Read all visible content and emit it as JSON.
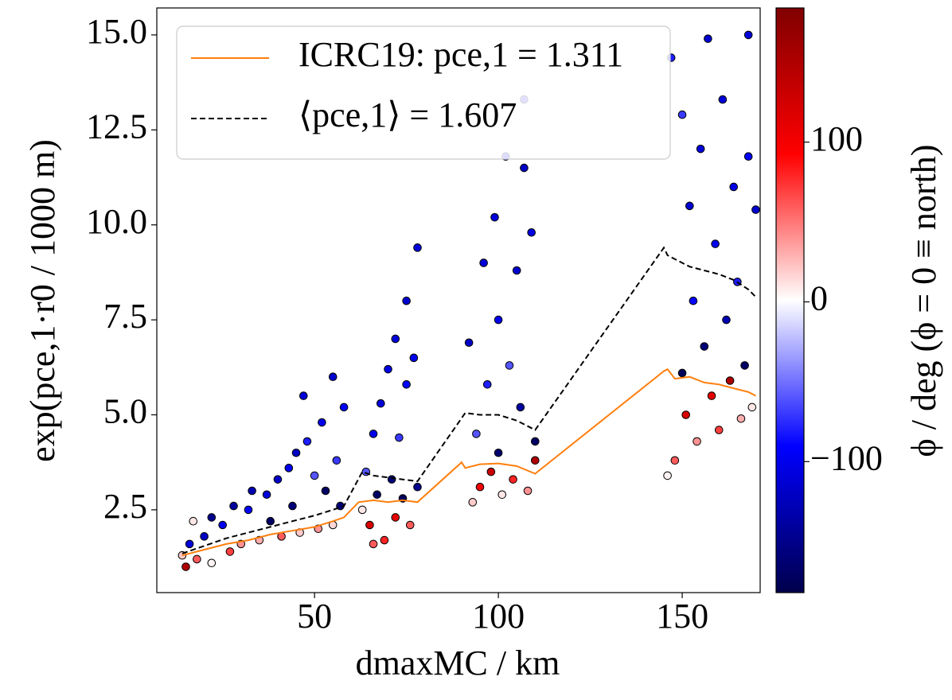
{
  "chart_data": {
    "type": "scatter",
    "xlabel": "dmaxMC / km",
    "ylabel": "exp(pce,1·r0 / 1000 m)",
    "xlim": [
      7.1,
      171.2
    ],
    "ylim": [
      0.32,
      15.71
    ],
    "xticks": [
      50,
      100,
      150
    ],
    "yticks": [
      2.5,
      {
        "value": 5,
        "label": "5.0"
      },
      7.5,
      {
        "value": 10,
        "label": "10.0"
      },
      12.5,
      {
        "value": 15,
        "label": "15.0"
      }
    ],
    "colorbar": {
      "label": "ϕ / deg (ϕ = 0 ≡ north)",
      "lim": [
        -182,
        184
      ],
      "ticks": [
        {
          "value": -100,
          "label": "−100"
        },
        0,
        100
      ],
      "colormap": [
        "#00004c",
        "#0000ff",
        "#ffffff",
        "#ff0000",
        "#800000"
      ]
    },
    "legend": "upper left",
    "scatter": {
      "x": [
        14,
        15,
        16,
        17,
        18,
        20,
        22,
        22,
        25,
        27,
        28,
        30,
        32,
        33,
        35,
        37,
        38,
        40,
        41,
        43,
        44,
        45,
        46,
        47,
        48,
        50,
        51,
        52,
        53,
        55,
        55,
        56,
        57,
        58,
        63,
        64,
        65,
        66,
        67,
        68,
        69,
        70,
        71,
        72,
        72,
        73,
        74,
        75,
        75,
        76,
        77,
        78,
        78,
        66,
        92,
        93,
        94,
        95,
        96,
        97,
        98,
        99,
        100,
        100,
        101,
        102,
        103,
        104,
        105,
        106,
        107,
        107,
        108,
        109,
        110,
        110,
        146,
        147,
        148,
        150,
        150,
        151,
        152,
        153,
        154,
        155,
        156,
        157,
        158,
        159,
        160,
        161,
        162,
        163,
        164,
        165,
        166,
        167,
        168,
        168,
        169,
        170
      ],
      "values": [
        1.3,
        1.0,
        1.6,
        2.2,
        1.2,
        1.8,
        2.3,
        1.1,
        2.1,
        1.4,
        2.6,
        1.6,
        2.5,
        3.0,
        1.7,
        2.9,
        2.2,
        3.3,
        1.8,
        3.6,
        2.6,
        4.0,
        1.9,
        5.5,
        4.3,
        3.4,
        2.0,
        4.8,
        3.0,
        6.0,
        2.1,
        3.8,
        2.6,
        5.2,
        2.5,
        3.5,
        2.1,
        4.5,
        2.9,
        5.3,
        1.7,
        6.2,
        3.3,
        2.3,
        7.0,
        4.4,
        2.8,
        8.0,
        5.8,
        2.1,
        6.5,
        9.4,
        3.1,
        1.6,
        6.9,
        2.7,
        4.5,
        3.1,
        9.0,
        5.8,
        3.5,
        10.2,
        7.5,
        4.0,
        2.9,
        11.8,
        6.3,
        3.3,
        8.8,
        5.2,
        13.3,
        11.5,
        3.0,
        9.8,
        4.3,
        3.8,
        3.4,
        14.4,
        3.8,
        12.9,
        6.1,
        5.0,
        10.5,
        8.0,
        4.3,
        12.0,
        6.8,
        14.9,
        5.5,
        9.5,
        4.6,
        13.3,
        7.5,
        5.9,
        11.0,
        8.5,
        4.9,
        6.3,
        15.0,
        11.8,
        5.2,
        10.4
      ],
      "phi": [
        20,
        150,
        -110,
        10,
        60,
        -120,
        -150,
        5,
        -100,
        70,
        -140,
        40,
        -90,
        -130,
        30,
        -110,
        -170,
        -120,
        60,
        -100,
        -160,
        -120,
        20,
        -110,
        -80,
        -60,
        40,
        -100,
        -170,
        -115,
        15,
        -70,
        -160,
        -95,
        10,
        -60,
        120,
        -100,
        -170,
        -110,
        80,
        -105,
        -160,
        110,
        -110,
        -70,
        -175,
        -115,
        -90,
        60,
        -100,
        -110,
        -150,
        60,
        -120,
        20,
        -60,
        100,
        -110,
        -80,
        130,
        -110,
        -100,
        -165,
        10,
        -80,
        -60,
        80,
        -115,
        -140,
        -70,
        -120,
        40,
        -105,
        -170,
        150,
        5,
        -80,
        60,
        -70,
        -175,
        120,
        -115,
        -90,
        40,
        -110,
        -160,
        -115,
        110,
        -100,
        70,
        -110,
        -130,
        150,
        -105,
        -80,
        30,
        -170,
        -110,
        -95,
        10,
        -115
      ]
    },
    "series": [
      {
        "name": "ICRC19: pce,1 = 1.311",
        "color": "#ff7f0e",
        "dash": false,
        "x": [
          14,
          20,
          26,
          32,
          38,
          44,
          50,
          55,
          58,
          62,
          66,
          70,
          74,
          78,
          90,
          91,
          95,
          100,
          105,
          110,
          145,
          146,
          148,
          152,
          156,
          160,
          164,
          168,
          170
        ],
        "values": [
          1.3,
          1.45,
          1.6,
          1.7,
          1.85,
          1.95,
          2.05,
          2.2,
          2.3,
          2.7,
          2.75,
          2.7,
          2.75,
          2.7,
          3.75,
          3.6,
          3.7,
          3.72,
          3.65,
          3.45,
          6.15,
          6.2,
          5.95,
          6.0,
          5.85,
          5.8,
          5.7,
          5.6,
          5.5
        ]
      },
      {
        "name": "⟨pce,1⟩ = 1.607",
        "color": "#000000",
        "dash": true,
        "x": [
          14,
          20,
          26,
          32,
          38,
          44,
          50,
          55,
          58,
          63,
          66,
          70,
          74,
          78,
          91,
          95,
          100,
          105,
          108,
          110,
          145,
          146,
          148,
          152,
          156,
          160,
          164,
          168,
          170
        ],
        "values": [
          1.35,
          1.55,
          1.75,
          1.9,
          2.05,
          2.2,
          2.35,
          2.5,
          2.6,
          3.5,
          3.4,
          3.35,
          3.3,
          3.25,
          5.05,
          5.0,
          5.0,
          4.85,
          4.7,
          4.6,
          9.4,
          9.2,
          9.1,
          8.9,
          8.8,
          8.7,
          8.55,
          8.3,
          8.1
        ]
      }
    ]
  }
}
